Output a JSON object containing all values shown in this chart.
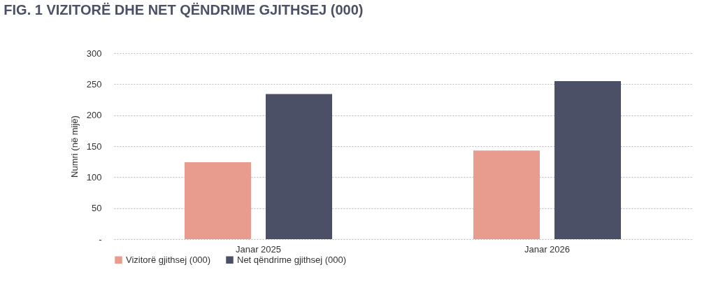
{
  "chart_data": {
    "type": "bar",
    "title": "FIG. 1 VIZITORË DHE NET QËNDRIME GJITHSEJ (000)",
    "ylabel": "Numri (në mijë)",
    "categories": [
      "Janar 2025",
      "Janar 2026"
    ],
    "series": [
      {
        "name": "Vizitorë gjithsej (000)",
        "color": "#e89c8e",
        "values": [
          124,
          143
        ]
      },
      {
        "name": "Net qëndrime gjithsej (000)",
        "color": "#4b5066",
        "values": [
          234,
          255
        ]
      }
    ],
    "ylim": [
      0,
      300
    ],
    "yticks": [
      {
        "value": 0,
        "label": "-"
      },
      50,
      100,
      150,
      200,
      250,
      300
    ],
    "grid": "y",
    "legend": "bottom"
  }
}
